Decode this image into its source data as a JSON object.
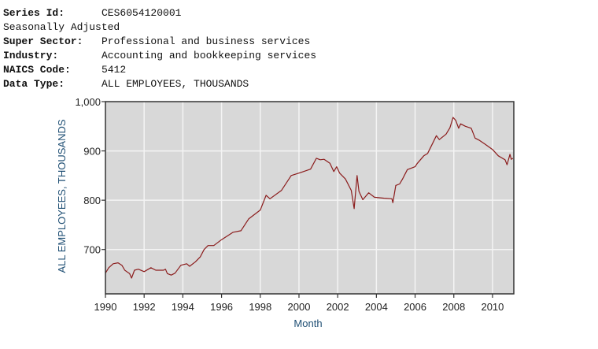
{
  "header": {
    "rows": [
      {
        "key": "Series Id:",
        "value": "CES6054120001"
      },
      {
        "key": "Seasonally Adjusted",
        "value": ""
      },
      {
        "key": "Super Sector:",
        "value": "Professional and business services"
      },
      {
        "key": "Industry:",
        "value": "Accounting and bookkeeping services"
      },
      {
        "key": "NAICS Code:",
        "value": "5412"
      },
      {
        "key": "Data Type:",
        "value": "ALL EMPLOYEES, THOUSANDS"
      }
    ]
  },
  "colors": {
    "plot_bg": "#d8d8d8",
    "grid": "#f4f4f4",
    "line": "#8b1c1c",
    "axis": "#333333",
    "axis_title": "#1f4f74"
  },
  "chart_data": {
    "type": "line",
    "title": "",
    "xlabel": "Month",
    "ylabel": "ALL EMPLOYEES, THOUSANDS",
    "xlim": [
      1990,
      2011.1
    ],
    "ylim": [
      610,
      1000
    ],
    "x_ticks": [
      1990,
      1992,
      1994,
      1996,
      1998,
      2000,
      2002,
      2004,
      2006,
      2008,
      2010
    ],
    "x_tick_labels": [
      "1990",
      "1992",
      "1994",
      "1996",
      "1998",
      "2000",
      "2002",
      "2004",
      "2006",
      "2008",
      "2010"
    ],
    "y_ticks": [
      700,
      800,
      900,
      1000
    ],
    "y_tick_labels": [
      "700",
      "800",
      "900",
      "1,000"
    ],
    "grid": true,
    "legend": null,
    "series": [
      {
        "name": "Accounting and bookkeeping services (CES6054120001)",
        "x": [
          1990.0,
          1990.17,
          1990.4,
          1990.65,
          1990.85,
          1991.0,
          1991.1,
          1991.25,
          1991.35,
          1991.5,
          1991.7,
          1992.0,
          1992.35,
          1992.6,
          1993.0,
          1993.1,
          1993.2,
          1993.4,
          1993.6,
          1993.9,
          1994.2,
          1994.35,
          1994.65,
          1994.9,
          1995.1,
          1995.3,
          1995.6,
          1996.0,
          1996.6,
          1997.0,
          1997.4,
          1998.0,
          1998.3,
          1998.5,
          1999.1,
          1999.6,
          2000.0,
          2000.6,
          2000.9,
          2001.1,
          2001.3,
          2001.6,
          2001.8,
          2001.95,
          2002.1,
          2002.4,
          2002.7,
          2002.85,
          2003.0,
          2003.1,
          2003.3,
          2003.6,
          2003.9,
          2004.4,
          2004.8,
          2004.85,
          2005.0,
          2005.2,
          2005.35,
          2005.6,
          2006.0,
          2006.1,
          2006.45,
          2006.65,
          2006.9,
          2007.1,
          2007.25,
          2007.6,
          2007.8,
          2007.96,
          2008.1,
          2008.25,
          2008.35,
          2008.6,
          2008.9,
          2009.1,
          2009.3,
          2009.6,
          2010.0,
          2010.3,
          2010.65,
          2010.75,
          2010.9,
          2010.97,
          2011.05
        ],
        "values": [
          652,
          663,
          671,
          673,
          668,
          658,
          655,
          651,
          642,
          658,
          660,
          655,
          663,
          658,
          658,
          660,
          651,
          648,
          652,
          668,
          671,
          666,
          675,
          685,
          700,
          708,
          708,
          720,
          735,
          738,
          762,
          780,
          810,
          803,
          820,
          850,
          855,
          863,
          885,
          882,
          883,
          875,
          858,
          868,
          855,
          843,
          820,
          783,
          850,
          818,
          801,
          815,
          806,
          804,
          803,
          795,
          830,
          833,
          843,
          862,
          868,
          874,
          890,
          895,
          915,
          931,
          923,
          934,
          947,
          968,
          962,
          946,
          955,
          950,
          946,
          926,
          922,
          914,
          903,
          890,
          882,
          872,
          893,
          883,
          885
        ]
      }
    ]
  }
}
